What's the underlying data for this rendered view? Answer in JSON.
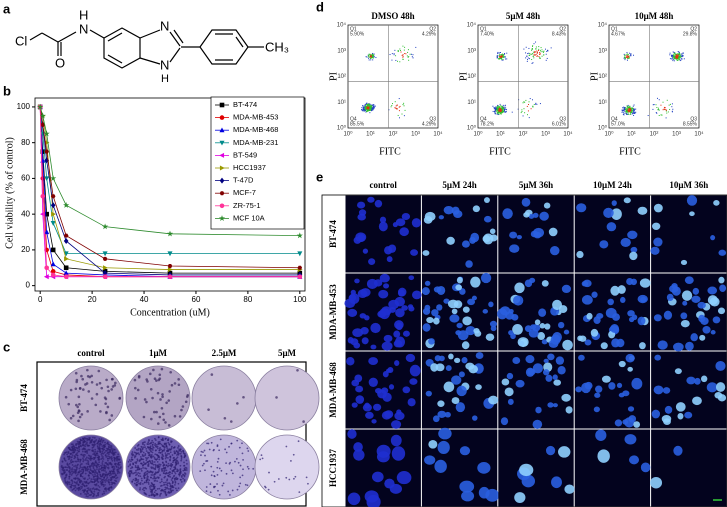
{
  "panel_labels": [
    "a",
    "b",
    "c",
    "d",
    "e"
  ],
  "structure": {
    "atoms": [
      "Cl",
      "O",
      "N",
      "H",
      "N",
      "N",
      "H",
      "CH₃"
    ]
  },
  "chart_data": {
    "type": "line",
    "ylabel": "Cell viability (% of control)",
    "xlabel": "Concentration (uM)",
    "x": [
      0,
      1,
      2.5,
      5,
      10,
      25,
      50,
      100
    ],
    "xlim": [
      -2,
      102
    ],
    "ylim": [
      -3,
      105
    ],
    "xticks": [
      0,
      20,
      40,
      60,
      80,
      100
    ],
    "yticks": [
      0,
      20,
      40,
      60,
      80,
      100
    ],
    "legend": "upper right",
    "series": [
      {
        "name": "BT-474",
        "color": "#000000",
        "marker": "square",
        "values": [
          100,
          75,
          40,
          20,
          10,
          8,
          7,
          7
        ]
      },
      {
        "name": "MDA-MB-453",
        "color": "#e00000",
        "marker": "circle",
        "values": [
          100,
          60,
          20,
          8,
          6,
          5,
          5,
          5
        ]
      },
      {
        "name": "MDA-MB-468",
        "color": "#0000e0",
        "marker": "triangle",
        "values": [
          100,
          70,
          30,
          12,
          7,
          6,
          5,
          5
        ]
      },
      {
        "name": "MDA-MB-231",
        "color": "#008b8b",
        "marker": "triangle-down",
        "values": [
          100,
          85,
          60,
          35,
          18,
          18,
          18,
          18
        ]
      },
      {
        "name": "BT-549",
        "color": "#e000e0",
        "marker": "triangle-left",
        "values": [
          100,
          40,
          5,
          5,
          5,
          5,
          5,
          5
        ]
      },
      {
        "name": "HCC1937",
        "color": "#999900",
        "marker": "triangle-right",
        "values": [
          100,
          95,
          80,
          40,
          15,
          10,
          9,
          9
        ]
      },
      {
        "name": "T-47D",
        "color": "#000080",
        "marker": "diamond",
        "values": [
          100,
          90,
          70,
          45,
          25,
          7,
          6,
          6
        ]
      },
      {
        "name": "MCF-7",
        "color": "#800000",
        "marker": "hexagon",
        "values": [
          100,
          90,
          75,
          50,
          28,
          15,
          11,
          10
        ]
      },
      {
        "name": "ZR-75-1",
        "color": "#ff3399",
        "marker": "circle",
        "values": [
          100,
          50,
          10,
          6,
          5,
          5,
          5,
          5
        ]
      },
      {
        "name": "MCF 10A",
        "color": "#2e8b2e",
        "marker": "star",
        "values": [
          100,
          95,
          85,
          60,
          45,
          33,
          29,
          28
        ]
      }
    ]
  },
  "colony": {
    "columns": [
      "control",
      "1μM",
      "2.5μM",
      "5μM"
    ],
    "rows": [
      "BT-474",
      "MDA-MB-468"
    ]
  },
  "flow": {
    "x_label": "FITC",
    "y_label": "PI",
    "ticks": [
      "10⁰",
      "10¹",
      "10²",
      "10³",
      "10⁴"
    ],
    "plots": [
      {
        "title": "DMSO 48h",
        "quadrants": [
          {
            "name": "Q1",
            "value": "5.90%"
          },
          {
            "name": "Q2",
            "value": "4.29%"
          },
          {
            "name": "Q4",
            "value": "85.5%"
          },
          {
            "name": "Q3",
            "value": "4.29%"
          }
        ]
      },
      {
        "title": "5μM 48h",
        "quadrants": [
          {
            "name": "Q1",
            "value": "7.40%"
          },
          {
            "name": "Q2",
            "value": "8.43%"
          },
          {
            "name": "Q4",
            "value": "78.2%"
          },
          {
            "name": "Q3",
            "value": "6.01%"
          }
        ]
      },
      {
        "title": "10μM 48h",
        "quadrants": [
          {
            "name": "Q1",
            "value": "4.67%"
          },
          {
            "name": "Q2",
            "value": "29.8%"
          },
          {
            "name": "Q4",
            "value": "57.0%"
          },
          {
            "name": "Q3",
            "value": "8.55%"
          }
        ]
      }
    ]
  },
  "staining": {
    "columns": [
      "control",
      "5μM 24h",
      "5μM 36h",
      "10μM 24h",
      "10μM 36h"
    ],
    "rows": [
      "BT-474",
      "MDA-MB-453",
      "MDA-MB-468",
      "HCC1937"
    ]
  }
}
